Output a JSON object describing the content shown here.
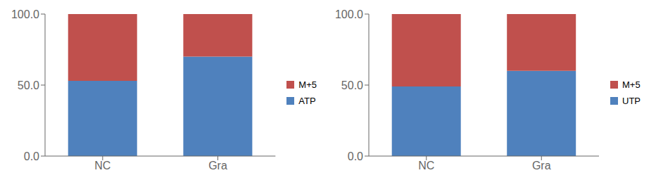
{
  "chart_data": [
    {
      "type": "bar",
      "stacked": true,
      "categories": [
        "NC",
        "Gra"
      ],
      "series": [
        {
          "name": "ATP",
          "color": "#4F81BD",
          "values": [
            53.0,
            70.0
          ]
        },
        {
          "name": "M+5",
          "color": "#C0504D",
          "values": [
            47.0,
            30.0
          ]
        }
      ],
      "ylim": [
        0,
        100
      ],
      "yticks": [
        {
          "value": 0,
          "label": "0.0"
        },
        {
          "value": 50,
          "label": "50.0"
        },
        {
          "value": 100,
          "label": "100.0"
        }
      ],
      "grid": false,
      "legend": "right"
    },
    {
      "type": "bar",
      "stacked": true,
      "categories": [
        "NC",
        "Gra"
      ],
      "series": [
        {
          "name": "UTP",
          "color": "#4F81BD",
          "values": [
            49.0,
            60.0
          ]
        },
        {
          "name": "M+5",
          "color": "#C0504D",
          "values": [
            51.0,
            40.0
          ]
        }
      ],
      "ylim": [
        0,
        100
      ],
      "yticks": [
        {
          "value": 0,
          "label": "0.0"
        },
        {
          "value": 50,
          "label": "50.0"
        },
        {
          "value": 100,
          "label": "100.0"
        }
      ],
      "grid": false,
      "legend": "right"
    }
  ]
}
